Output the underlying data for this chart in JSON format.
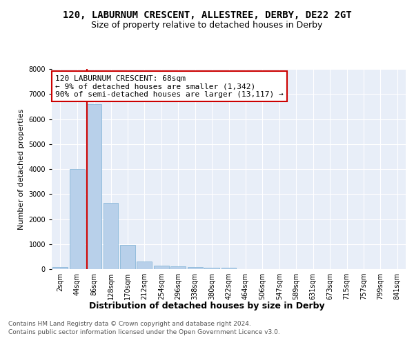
{
  "title": "120, LABURNUM CRESCENT, ALLESTREE, DERBY, DE22 2GT",
  "subtitle": "Size of property relative to detached houses in Derby",
  "xlabel": "Distribution of detached houses by size in Derby",
  "ylabel": "Number of detached properties",
  "categories": [
    "2sqm",
    "44sqm",
    "86sqm",
    "128sqm",
    "170sqm",
    "212sqm",
    "254sqm",
    "296sqm",
    "338sqm",
    "380sqm",
    "422sqm",
    "464sqm",
    "506sqm",
    "547sqm",
    "589sqm",
    "631sqm",
    "673sqm",
    "715sqm",
    "757sqm",
    "799sqm",
    "841sqm"
  ],
  "values": [
    80,
    4000,
    6600,
    2650,
    970,
    300,
    130,
    120,
    80,
    60,
    60,
    5,
    0,
    0,
    0,
    0,
    0,
    0,
    0,
    0,
    0
  ],
  "bar_color": "#b8d0ea",
  "bar_edge_color": "#7aafd4",
  "vline_color": "#cc0000",
  "ylim": [
    0,
    8000
  ],
  "yticks": [
    0,
    1000,
    2000,
    3000,
    4000,
    5000,
    6000,
    7000,
    8000
  ],
  "annotation_line1": "120 LABURNUM CRESCENT: 68sqm",
  "annotation_line2": "← 9% of detached houses are smaller (1,342)",
  "annotation_line3": "90% of semi-detached houses are larger (13,117) →",
  "annotation_box_color": "#ffffff",
  "annotation_box_edge_color": "#cc0000",
  "background_color": "#e8eef8",
  "grid_color": "#ffffff",
  "fig_background": "#ffffff",
  "title_fontsize": 10,
  "subtitle_fontsize": 9,
  "xlabel_fontsize": 9,
  "ylabel_fontsize": 8,
  "tick_fontsize": 7,
  "annotation_fontsize": 8,
  "footer_line1": "Contains HM Land Registry data © Crown copyright and database right 2024.",
  "footer_line2": "Contains public sector information licensed under the Open Government Licence v3.0.",
  "footer_fontsize": 6.5
}
